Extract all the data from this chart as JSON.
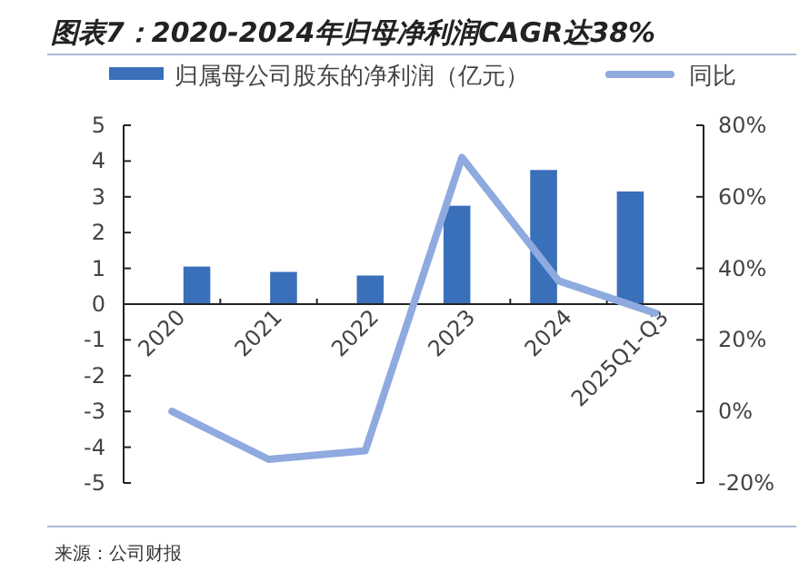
{
  "chart_data": {
    "type": "bar",
    "title": "图表7：2020-2024年归母净利润CAGR达38%",
    "categories": [
      "2020",
      "2021",
      "2022",
      "2023",
      "2024",
      "2025Q1-Q3"
    ],
    "series": [
      {
        "name": "归属母公司股东的净利润（亿元）",
        "color": "#3a6fba",
        "values": [
          1.05,
          0.9,
          0.8,
          2.75,
          3.75,
          3.15
        ]
      },
      {
        "name": "同比",
        "type": "line",
        "axis": "y2",
        "color": "#8eaadf",
        "values": [
          0,
          -13.4,
          -11,
          71,
          36.5,
          27.5
        ]
      }
    ],
    "ylim": [
      -5,
      5
    ],
    "yticks": [
      -5,
      -4,
      -3,
      -2,
      -1,
      0,
      1,
      2,
      3,
      4,
      5
    ],
    "y2lim": [
      -20,
      80
    ],
    "y2ticks": [
      {
        "value": -20,
        "label": "-20%"
      },
      {
        "value": 0,
        "label": "0%"
      },
      {
        "value": 20,
        "label": "20%"
      },
      {
        "value": 40,
        "label": "40%"
      },
      {
        "value": 60,
        "label": "60%"
      },
      {
        "value": 80,
        "label": "80%"
      }
    ],
    "legend": "top",
    "grid": false,
    "annotations": [
      "来源：公司财报"
    ]
  }
}
